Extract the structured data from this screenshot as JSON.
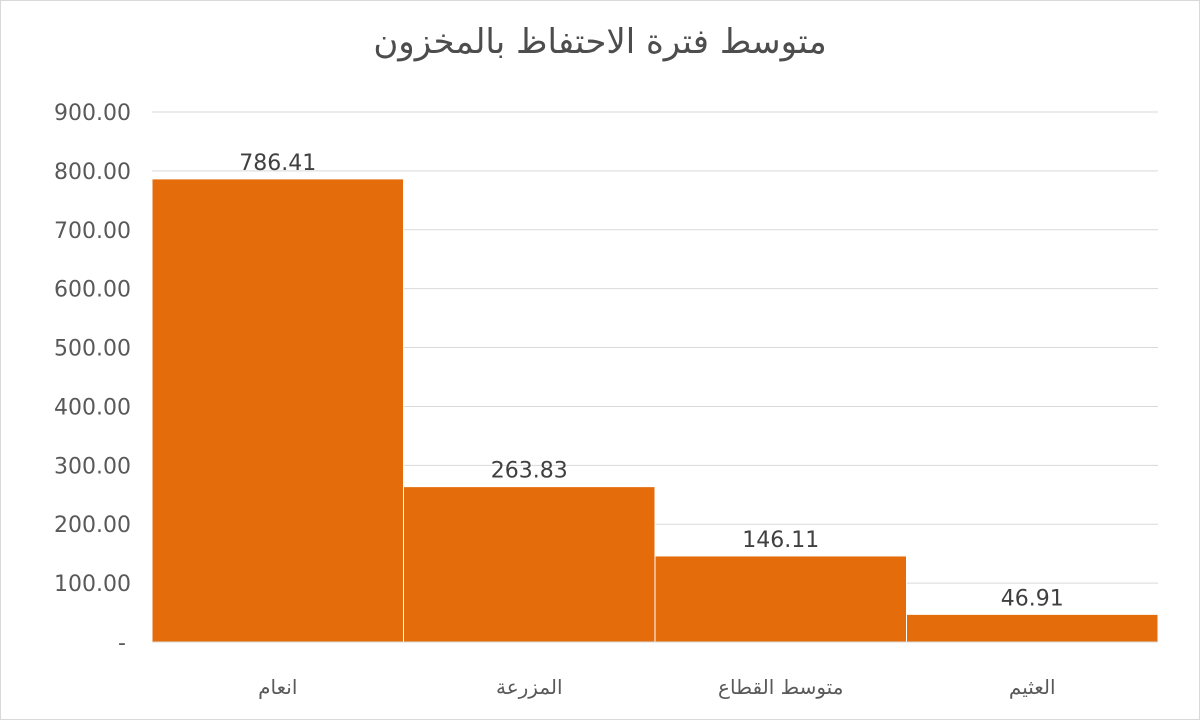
{
  "chart_data": {
    "type": "bar",
    "title": "متوسط فترة الاحتفاظ بالمخزون",
    "categories": [
      "انعام",
      "المزرعة",
      "متوسط القطاع",
      "العثيم"
    ],
    "values": [
      786.41,
      263.83,
      146.11,
      46.91
    ],
    "data_labels": [
      "786.41",
      "263.83",
      "146.11",
      "46.91"
    ],
    "ylim": [
      0,
      900
    ],
    "yticks": [
      {
        "value": 0,
        "label": "-"
      },
      {
        "value": 100,
        "label": "100.00"
      },
      {
        "value": 200,
        "label": "200.00"
      },
      {
        "value": 300,
        "label": "300.00"
      },
      {
        "value": 400,
        "label": "400.00"
      },
      {
        "value": 500,
        "label": "500.00"
      },
      {
        "value": 600,
        "label": "600.00"
      },
      {
        "value": 700,
        "label": "700.00"
      },
      {
        "value": 800,
        "label": "800.00"
      },
      {
        "value": 900,
        "label": "900.00"
      }
    ],
    "grid": true,
    "bar_color": "#E46C0A",
    "gridline_color": "#d9d9d9",
    "legend": "none"
  }
}
